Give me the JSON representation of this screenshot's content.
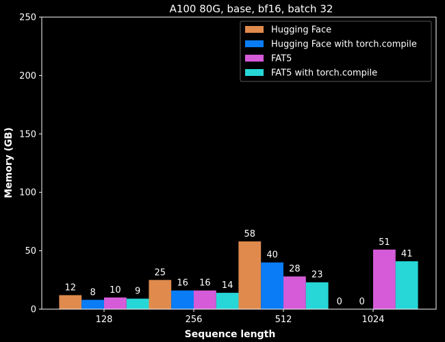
{
  "chart_data": {
    "type": "bar",
    "title": "A100 80G, base, bf16, batch 32",
    "xlabel": "Sequence length",
    "ylabel": "Memory (GB)",
    "categories": [
      "128",
      "256",
      "512",
      "1024"
    ],
    "ylim": [
      0,
      250
    ],
    "yticks": [
      "0",
      "50",
      "100",
      "150",
      "200",
      "250"
    ],
    "grid": false,
    "legend_position": "top-right",
    "series": [
      {
        "name": "Hugging Face",
        "color": "#e08a4d",
        "values": [
          12,
          25,
          58,
          0
        ],
        "labels": [
          "12",
          "25",
          "58",
          "0"
        ]
      },
      {
        "name": "Hugging Face with torch.compile",
        "color": "#0a7cf6",
        "values": [
          8,
          16,
          40,
          0
        ],
        "labels": [
          "8",
          "16",
          "40",
          "0"
        ]
      },
      {
        "name": "FAT5",
        "color": "#d55bd8",
        "values": [
          10,
          16,
          28,
          51
        ],
        "labels": [
          "10",
          "16",
          "28",
          "51"
        ]
      },
      {
        "name": "FAT5 with torch.compile",
        "color": "#27d6d6",
        "values": [
          9,
          14,
          23,
          41
        ],
        "labels": [
          "9",
          "14",
          "23",
          "41"
        ]
      }
    ]
  }
}
